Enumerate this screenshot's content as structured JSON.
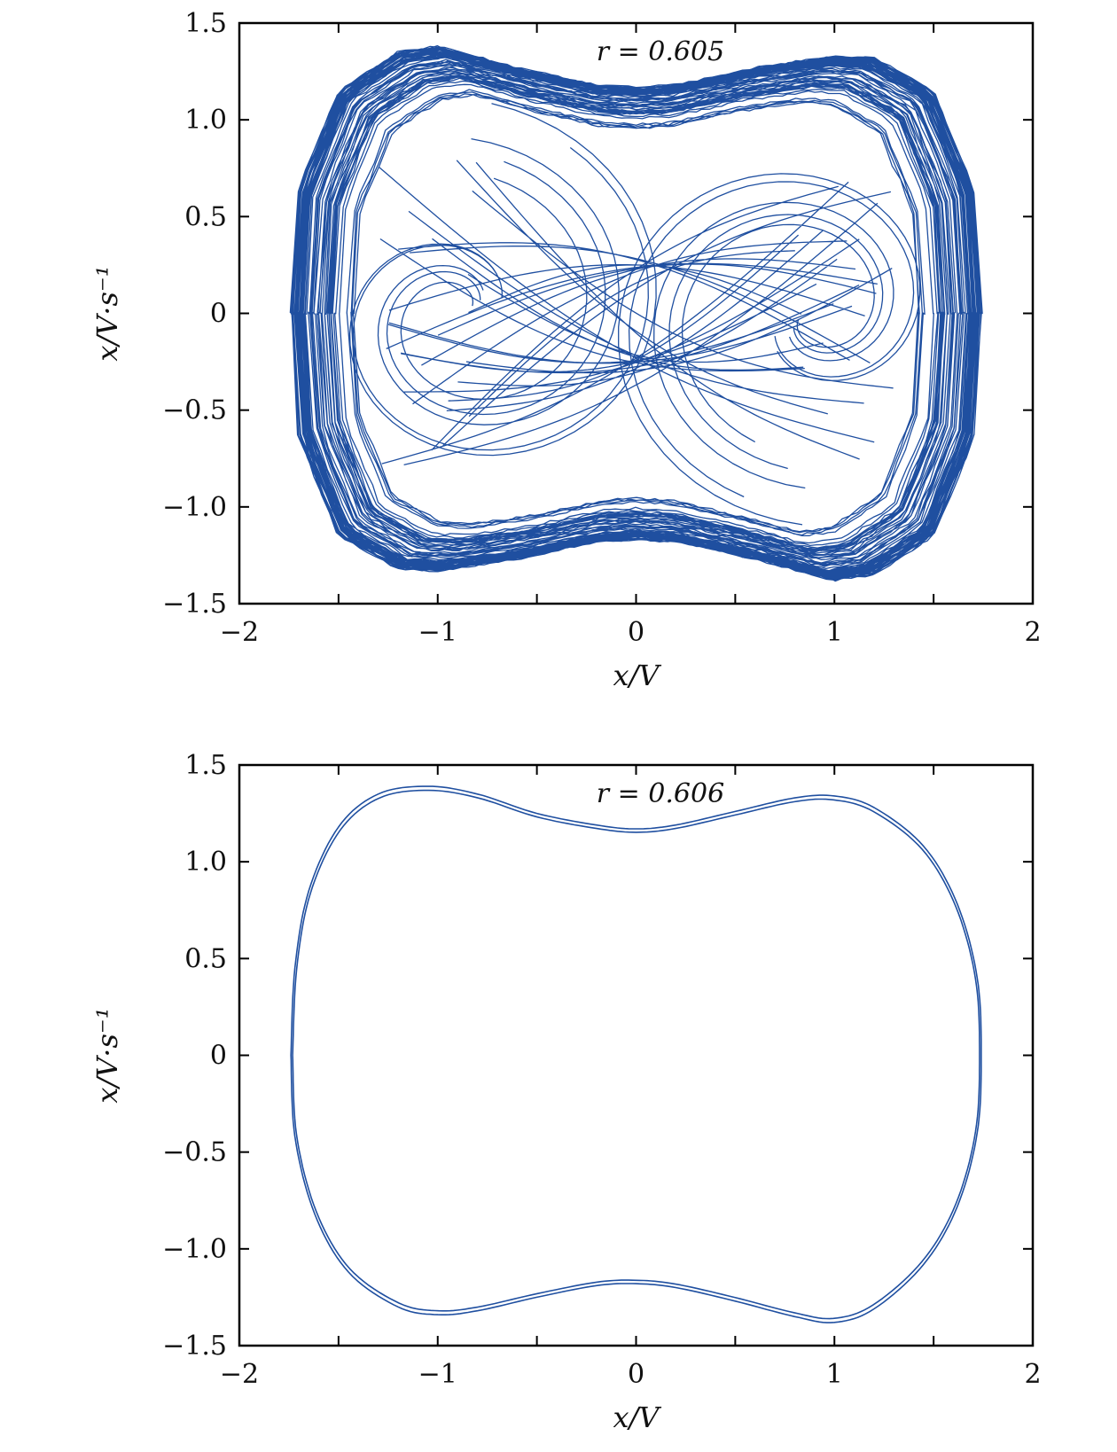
{
  "chart_data": [
    {
      "type": "line",
      "annotation": "r = 0.605",
      "xlabel": "x/V",
      "ylabel": "x/V·s⁻¹",
      "xlim": [
        -2,
        2
      ],
      "ylim": [
        -1.5,
        1.5
      ],
      "xticks": [
        -2,
        -1,
        0,
        1,
        2
      ],
      "xtick_labels": [
        "−2",
        "−1",
        "0",
        "1",
        "2"
      ],
      "yticks": [
        -1.5,
        -1.0,
        -0.5,
        0,
        0.5,
        1.0,
        1.5
      ],
      "ytick_labels": [
        "−1.5",
        "−1.0",
        "−0.5",
        "0",
        "0.5",
        "1.0",
        "1.5"
      ],
      "grid": false,
      "legend": "none",
      "color": "#1f4fa0",
      "series": [
        {
          "regime": "chaotic",
          "outer_band_x": [
            -1.74,
            -1.7,
            -1.5,
            -1.2,
            -1.0,
            -0.6,
            -0.2,
            0.0,
            0.2,
            0.6,
            1.0,
            1.2,
            1.5,
            1.7,
            1.74
          ],
          "outer_band_top_y": [
            0.0,
            0.65,
            1.15,
            1.35,
            1.38,
            1.27,
            1.18,
            1.17,
            1.18,
            1.27,
            1.33,
            1.32,
            1.15,
            0.65,
            0.0
          ],
          "outer_band_bottom_y": [
            0.0,
            -0.65,
            -1.15,
            -1.32,
            -1.33,
            -1.27,
            -1.18,
            -1.17,
            -1.18,
            -1.27,
            -1.38,
            -1.35,
            -1.15,
            -0.65,
            0.0
          ],
          "inner_focus_left": [
            -0.62,
            0.0
          ],
          "inner_focus_right": [
            0.62,
            0.0
          ]
        }
      ]
    },
    {
      "type": "line",
      "annotation": "r = 0.606",
      "xlabel": "x/V",
      "ylabel": "x/V·s⁻¹",
      "xlim": [
        -2,
        2
      ],
      "ylim": [
        -1.5,
        1.5
      ],
      "xticks": [
        -2,
        -1,
        0,
        1,
        2
      ],
      "xtick_labels": [
        "−2",
        "−1",
        "0",
        "1",
        "2"
      ],
      "yticks": [
        -1.5,
        -1.0,
        -0.5,
        0,
        0.5,
        1.0,
        1.5
      ],
      "ytick_labels": [
        "−1.5",
        "−1.0",
        "−0.5",
        "0",
        "0.5",
        "1.0",
        "1.5"
      ],
      "grid": false,
      "legend": "none",
      "color": "#1f4fa0",
      "series": [
        {
          "regime": "periodic",
          "x": [
            -1.74,
            -1.72,
            -1.65,
            -1.5,
            -1.3,
            -1.05,
            -0.8,
            -0.5,
            -0.2,
            0.0,
            0.2,
            0.5,
            0.8,
            1.0,
            1.2,
            1.45,
            1.62,
            1.72,
            1.74,
            1.72,
            1.62,
            1.45,
            1.2,
            1.0,
            0.8,
            0.5,
            0.2,
            0.0,
            -0.2,
            -0.5,
            -0.8,
            -1.0,
            -1.2,
            -1.45,
            -1.62,
            -1.72,
            -1.74
          ],
          "y": [
            0.0,
            0.45,
            0.85,
            1.18,
            1.35,
            1.39,
            1.35,
            1.25,
            1.19,
            1.17,
            1.19,
            1.26,
            1.33,
            1.34,
            1.28,
            1.08,
            0.78,
            0.4,
            0.0,
            -0.4,
            -0.78,
            -1.08,
            -1.31,
            -1.38,
            -1.35,
            -1.27,
            -1.2,
            -1.18,
            -1.19,
            -1.25,
            -1.32,
            -1.34,
            -1.3,
            -1.12,
            -0.82,
            -0.42,
            0.0
          ]
        }
      ]
    }
  ]
}
